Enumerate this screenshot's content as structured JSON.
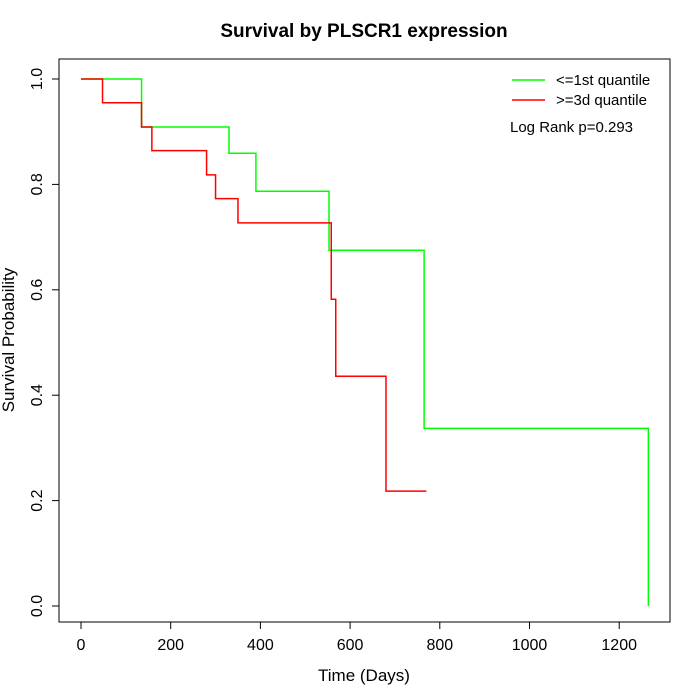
{
  "chart_data": {
    "type": "line",
    "step": true,
    "title": "Survival by PLSCR1 expression",
    "xlabel": "Time (Days)",
    "ylabel": "Survival Probability",
    "xlim": [
      0,
      1300
    ],
    "ylim": [
      0,
      1.0
    ],
    "xticks": [
      0,
      200,
      400,
      600,
      800,
      1000,
      1200
    ],
    "yticks": [
      0.0,
      0.2,
      0.4,
      0.6,
      0.8,
      1.0
    ],
    "xtick_labels": [
      "0",
      "200",
      "400",
      "600",
      "800",
      "1000",
      "1200"
    ],
    "ytick_labels": [
      "0.0",
      "0.2",
      "0.4",
      "0.6",
      "0.8",
      "1.0"
    ],
    "grid": false,
    "legend_position": "top-right",
    "annotation": "Log Rank p=0.293",
    "series": [
      {
        "name": "<=1st quantile",
        "color": "#00ff00",
        "x": [
          0,
          112,
          135,
          330,
          390,
          553,
          765,
          1265
        ],
        "y": [
          1.0,
          1.0,
          0.909,
          0.859,
          0.787,
          0.675,
          0.337,
          0.0
        ]
      },
      {
        "name": ">=3d quantile",
        "color": "#ff0000",
        "x": [
          0,
          48,
          135,
          158,
          280,
          300,
          350,
          558,
          568,
          680,
          770
        ],
        "y": [
          1.0,
          0.955,
          0.909,
          0.864,
          0.818,
          0.773,
          0.727,
          0.582,
          0.436,
          0.218,
          0.218
        ]
      }
    ]
  }
}
